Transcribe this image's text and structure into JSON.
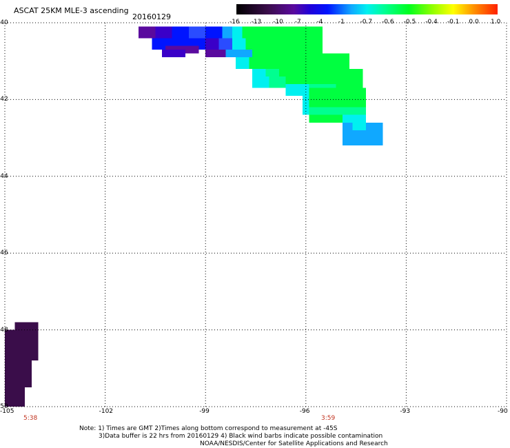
{
  "header": {
    "title": "ASCAT 25KM MLE-3 ascending",
    "date": "20160129"
  },
  "colorbar": {
    "ticks": [
      "-16",
      "-13",
      "-10",
      "-7",
      "-4",
      "-1",
      "-0.7",
      "-0.6",
      "-0.5",
      "-0.4",
      "-0.1",
      "0.0",
      "1.0"
    ]
  },
  "times": {
    "left": "5:38",
    "mid": "3:59"
  },
  "notes": {
    "line1": "Note: 1) Times are GMT 2)Times along bottom correspond to measurement at -45S",
    "line2": "3)Data buffer is 22 hrs from 20160129 4) Black wind barbs indicate possible contamination",
    "line3": "NOAA/NESDIS/Center for Satellite Applications and Research"
  },
  "colors": {
    "dark_purple": "#3a0d4a",
    "purple": "#5a0a9e",
    "violet": "#3a00c8",
    "blue": "#0014ff",
    "mid_blue": "#2a4cff",
    "azure": "#10a8ff",
    "cyan": "#00f0f0",
    "aqua_green": "#00ff90",
    "green": "#00ff40",
    "light_green": "#30ff30"
  },
  "chart_data": {
    "type": "heatmap",
    "title": "ASCAT 25KM MLE-3 ascending",
    "date": "20160129",
    "x_ticks": [
      "-105",
      "-102",
      "-99",
      "-96",
      "-93",
      "-90"
    ],
    "y_ticks": [
      "-40",
      "-42",
      "-44",
      "-46",
      "-48",
      "-50"
    ],
    "xlim": [
      -105,
      -90
    ],
    "ylim": [
      -50,
      -40
    ],
    "grid": true,
    "colorbar_levels": [
      "-16",
      "-13",
      "-10",
      "-7",
      "-4",
      "-1",
      "-0.7",
      "-0.6",
      "-0.5",
      "-0.4",
      "-0.1",
      "0.0",
      "1.0"
    ],
    "cells": [
      {
        "lon": [
          -101.0,
          -100.5
        ],
        "lat": [
          -40.1,
          -40.4
        ],
        "c": "purple"
      },
      {
        "lon": [
          -100.5,
          -100.0
        ],
        "lat": [
          -40.1,
          -40.4
        ],
        "c": "violet"
      },
      {
        "lon": [
          -100.0,
          -99.5
        ],
        "lat": [
          -40.1,
          -40.4
        ],
        "c": "blue"
      },
      {
        "lon": [
          -99.5,
          -99.0
        ],
        "lat": [
          -40.1,
          -40.4
        ],
        "c": "mid_blue"
      },
      {
        "lon": [
          -99.0,
          -98.5
        ],
        "lat": [
          -40.1,
          -40.4
        ],
        "c": "blue"
      },
      {
        "lon": [
          -98.5,
          -98.2
        ],
        "lat": [
          -40.1,
          -40.4
        ],
        "c": "azure"
      },
      {
        "lon": [
          -98.2,
          -97.9
        ],
        "lat": [
          -40.1,
          -40.4
        ],
        "c": "cyan"
      },
      {
        "lon": [
          -97.9,
          -95.5
        ],
        "lat": [
          -40.1,
          -40.4
        ],
        "c": "green"
      },
      {
        "lon": [
          -100.6,
          -99.0
        ],
        "lat": [
          -40.4,
          -40.7
        ],
        "c": "blue"
      },
      {
        "lon": [
          -99.0,
          -98.6
        ],
        "lat": [
          -40.4,
          -40.7
        ],
        "c": "violet"
      },
      {
        "lon": [
          -98.6,
          -98.2
        ],
        "lat": [
          -40.4,
          -40.7
        ],
        "c": "mid_blue"
      },
      {
        "lon": [
          -98.2,
          -97.8
        ],
        "lat": [
          -40.4,
          -40.7
        ],
        "c": "cyan"
      },
      {
        "lon": [
          -97.8,
          -95.5
        ],
        "lat": [
          -40.4,
          -40.7
        ],
        "c": "green"
      },
      {
        "lon": [
          -100.2,
          -99.2
        ],
        "lat": [
          -40.6,
          -40.8
        ],
        "c": "purple"
      },
      {
        "lon": [
          -100.3,
          -99.6
        ],
        "lat": [
          -40.7,
          -40.9
        ],
        "c": "violet"
      },
      {
        "lon": [
          -99.0,
          -98.4
        ],
        "lat": [
          -40.7,
          -40.9
        ],
        "c": "purple"
      },
      {
        "lon": [
          -98.4,
          -97.6
        ],
        "lat": [
          -40.7,
          -40.9
        ],
        "c": "azure"
      },
      {
        "lon": [
          -97.6,
          -95.5
        ],
        "lat": [
          -40.7,
          -40.9
        ],
        "c": "green"
      },
      {
        "lon": [
          -95.5,
          -94.7
        ],
        "lat": [
          -40.8,
          -40.9
        ],
        "c": "green"
      },
      {
        "lon": [
          -98.1,
          -97.7
        ],
        "lat": [
          -40.9,
          -41.2
        ],
        "c": "cyan"
      },
      {
        "lon": [
          -97.7,
          -94.7
        ],
        "lat": [
          -40.9,
          -41.2
        ],
        "c": "green"
      },
      {
        "lon": [
          -97.6,
          -97.2
        ],
        "lat": [
          -41.2,
          -41.4
        ],
        "c": "cyan"
      },
      {
        "lon": [
          -97.2,
          -96.8
        ],
        "lat": [
          -41.2,
          -41.4
        ],
        "c": "aqua_green"
      },
      {
        "lon": [
          -96.8,
          -94.3
        ],
        "lat": [
          -41.2,
          -41.4
        ],
        "c": "green"
      },
      {
        "lon": [
          -97.6,
          -97.1
        ],
        "lat": [
          -41.4,
          -41.7
        ],
        "c": "cyan"
      },
      {
        "lon": [
          -97.1,
          -96.6
        ],
        "lat": [
          -41.4,
          -41.7
        ],
        "c": "aqua_green"
      },
      {
        "lon": [
          -96.6,
          -94.3
        ],
        "lat": [
          -41.4,
          -41.7
        ],
        "c": "green"
      },
      {
        "lon": [
          -96.6,
          -95.9
        ],
        "lat": [
          -41.6,
          -41.9
        ],
        "c": "cyan"
      },
      {
        "lon": [
          -95.9,
          -95.1
        ],
        "lat": [
          -41.6,
          -41.9
        ],
        "c": "aqua_green"
      },
      {
        "lon": [
          -96.1,
          -95.9
        ],
        "lat": [
          -41.9,
          -42.4
        ],
        "c": "cyan"
      },
      {
        "lon": [
          -95.9,
          -94.2
        ],
        "lat": [
          -41.7,
          -42.2
        ],
        "c": "green"
      },
      {
        "lon": [
          -95.9,
          -94.2
        ],
        "lat": [
          -42.2,
          -42.5
        ],
        "c": "aqua_green"
      },
      {
        "lon": [
          -95.9,
          -94.6
        ],
        "lat": [
          -42.4,
          -42.6
        ],
        "c": "green"
      },
      {
        "lon": [
          -94.9,
          -94.2
        ],
        "lat": [
          -42.4,
          -42.6
        ],
        "c": "cyan"
      },
      {
        "lon": [
          -94.9,
          -93.7
        ],
        "lat": [
          -42.6,
          -43.2
        ],
        "c": "azure"
      },
      {
        "lon": [
          -94.6,
          -94.2
        ],
        "lat": [
          -42.6,
          -42.8
        ],
        "c": "cyan"
      },
      {
        "lon": [
          -104.7,
          -104.0
        ],
        "lat": [
          -47.8,
          -48.8
        ],
        "c": "dark_purple"
      },
      {
        "lon": [
          -104.8,
          -104.2
        ],
        "lat": [
          -48.4,
          -49.5
        ],
        "c": "dark_purple"
      },
      {
        "lon": [
          -104.8,
          -104.4
        ],
        "lat": [
          -49.4,
          -50.0
        ],
        "c": "dark_purple"
      },
      {
        "lon": [
          -105.0,
          -104.6
        ],
        "lat": [
          -48.0,
          -50.0
        ],
        "c": "dark_purple"
      }
    ]
  }
}
